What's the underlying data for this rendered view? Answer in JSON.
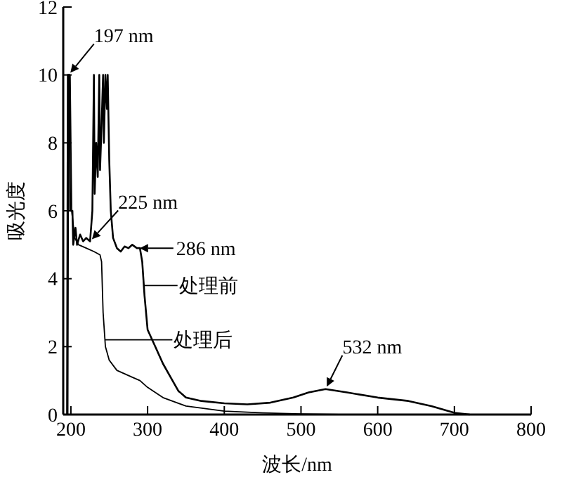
{
  "chart_data": {
    "type": "line",
    "xlabel": "波长/nm",
    "ylabel": "吸光度",
    "xlim": [
      190,
      800
    ],
    "ylim": [
      0,
      12
    ],
    "xticks": [
      200,
      300,
      400,
      500,
      600,
      700,
      800
    ],
    "yticks": [
      0,
      2,
      4,
      6,
      8,
      10,
      12
    ],
    "grid": false,
    "legend": "center",
    "marker": "none",
    "line_style": "solid",
    "series": [
      {
        "name": "处理前",
        "color": "#000000",
        "x": [
          195,
          196,
          198,
          199,
          202,
          203,
          206,
          208,
          212,
          216,
          220,
          225,
          228,
          230,
          231,
          233,
          235,
          237,
          238,
          240,
          242,
          243,
          245,
          247,
          248,
          250,
          252,
          255,
          260,
          265,
          270,
          275,
          280,
          286,
          290,
          293,
          296,
          300,
          310,
          320,
          330,
          340,
          350,
          370,
          400,
          430,
          460,
          490,
          510,
          532,
          560,
          600,
          640,
          670,
          700,
          720
        ],
        "values": [
          0,
          10,
          10,
          6,
          6,
          5,
          5.5,
          5,
          5.3,
          5.1,
          5.2,
          5.1,
          6,
          10,
          6.5,
          8,
          7,
          10,
          7.2,
          8.5,
          10,
          8,
          10,
          9,
          10,
          7.5,
          6,
          5.2,
          4.9,
          4.8,
          4.95,
          4.9,
          5,
          4.9,
          4.9,
          4.5,
          3.5,
          2.5,
          2,
          1.5,
          1.1,
          0.7,
          0.5,
          0.4,
          0.33,
          0.3,
          0.35,
          0.5,
          0.65,
          0.75,
          0.65,
          0.5,
          0.4,
          0.25,
          0.05,
          0
        ]
      },
      {
        "name": "处理后",
        "color": "#000000",
        "x": [
          196,
          197,
          199,
          201,
          205,
          210,
          220,
          230,
          238,
          240,
          242,
          245,
          250,
          260,
          280,
          290,
          300,
          320,
          350,
          400,
          450,
          500,
          550
        ],
        "values": [
          0,
          10,
          10,
          6,
          5.2,
          5,
          4.9,
          4.8,
          4.7,
          4.5,
          3,
          2,
          1.6,
          1.3,
          1.1,
          1,
          0.8,
          0.5,
          0.25,
          0.1,
          0.05,
          0.02,
          0
        ]
      }
    ],
    "annotations": [
      {
        "text": "197 nm",
        "x": 197,
        "y": 10
      },
      {
        "text": "225 nm",
        "x": 225,
        "y": 5.1
      },
      {
        "text": "286 nm",
        "x": 286,
        "y": 4.9
      },
      {
        "text": "532 nm",
        "x": 532,
        "y": 0.75
      }
    ]
  }
}
